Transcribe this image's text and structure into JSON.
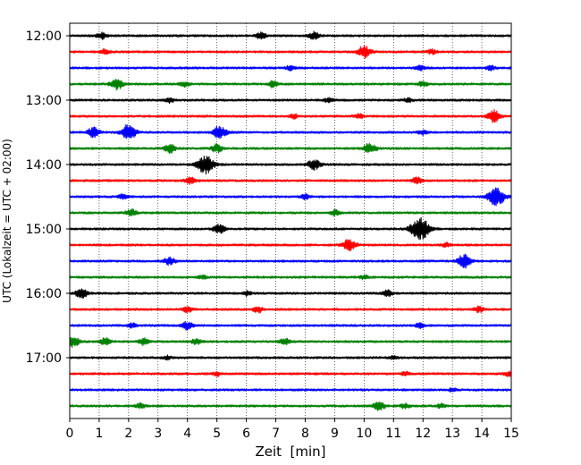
{
  "chart_data": {
    "type": "line",
    "title": "",
    "xlabel": "Zeit  [min]",
    "ylabel": "UTC (Lokalzeit = UTC + 02:00)",
    "xlim": [
      0,
      15
    ],
    "x_ticks": [
      0,
      1,
      2,
      3,
      4,
      5,
      6,
      7,
      8,
      9,
      10,
      11,
      12,
      13,
      14,
      15
    ],
    "y_ticks": [
      "12:00",
      "13:00",
      "14:00",
      "15:00",
      "16:00",
      "17:00"
    ],
    "grid": "vertical dotted lines at every minute",
    "traces_per_hour": 4,
    "trace_interval_min": 15,
    "color_cycle": [
      "#000000",
      "#ff0000",
      "#0000ff",
      "#008000"
    ],
    "series": [
      {
        "start": "12:00",
        "events": [
          [
            1.1,
            0.8
          ],
          [
            6.5,
            0.8
          ],
          [
            8.3,
            0.9
          ]
        ]
      },
      {
        "start": "12:15",
        "events": [
          [
            1.2,
            0.6
          ],
          [
            10.0,
            1.6
          ],
          [
            12.3,
            0.6
          ]
        ]
      },
      {
        "start": "12:30",
        "events": [
          [
            7.5,
            0.6
          ],
          [
            11.9,
            0.6
          ],
          [
            14.3,
            0.6
          ]
        ]
      },
      {
        "start": "12:45",
        "events": [
          [
            1.6,
            1.4
          ],
          [
            3.9,
            0.7
          ],
          [
            6.9,
            0.8
          ],
          [
            12.0,
            0.7
          ]
        ]
      },
      {
        "start": "13:00",
        "events": [
          [
            3.4,
            0.6
          ],
          [
            8.8,
            0.6
          ],
          [
            11.5,
            0.5
          ]
        ]
      },
      {
        "start": "13:15",
        "events": [
          [
            7.6,
            0.6
          ],
          [
            9.8,
            0.6
          ],
          [
            14.4,
            1.5
          ]
        ]
      },
      {
        "start": "13:30",
        "events": [
          [
            0.8,
            1.3
          ],
          [
            2.0,
            2.0
          ],
          [
            5.1,
            1.6
          ],
          [
            12.0,
            0.6
          ]
        ]
      },
      {
        "start": "13:45",
        "events": [
          [
            3.4,
            1.1
          ],
          [
            5.0,
            1.0
          ],
          [
            10.2,
            1.4
          ]
        ]
      },
      {
        "start": "14:00",
        "events": [
          [
            4.6,
            2.4
          ],
          [
            8.3,
            1.4
          ]
        ]
      },
      {
        "start": "14:15",
        "events": [
          [
            4.1,
            0.9
          ],
          [
            11.8,
            0.8
          ]
        ]
      },
      {
        "start": "14:30",
        "events": [
          [
            1.8,
            0.6
          ],
          [
            8.0,
            0.6
          ],
          [
            14.5,
            2.4
          ]
        ]
      },
      {
        "start": "14:45",
        "events": [
          [
            2.1,
            0.9
          ],
          [
            9.0,
            0.7
          ]
        ]
      },
      {
        "start": "15:00",
        "events": [
          [
            5.1,
            1.3
          ],
          [
            11.9,
            2.9
          ]
        ]
      },
      {
        "start": "15:15",
        "events": [
          [
            9.5,
            1.5
          ],
          [
            12.8,
            0.5
          ]
        ]
      },
      {
        "start": "15:30",
        "events": [
          [
            3.4,
            1.0
          ],
          [
            13.4,
            1.7
          ]
        ]
      },
      {
        "start": "15:45",
        "events": [
          [
            4.5,
            0.5
          ],
          [
            10.0,
            0.5
          ]
        ]
      },
      {
        "start": "16:00",
        "events": [
          [
            0.4,
            1.2
          ],
          [
            6.0,
            0.6
          ],
          [
            10.8,
            0.7
          ]
        ]
      },
      {
        "start": "16:15",
        "events": [
          [
            4.0,
            0.8
          ],
          [
            6.4,
            0.8
          ],
          [
            13.9,
            0.7
          ]
        ]
      },
      {
        "start": "16:30",
        "events": [
          [
            2.1,
            0.6
          ],
          [
            4.0,
            1.0
          ],
          [
            11.9,
            0.6
          ]
        ]
      },
      {
        "start": "16:45",
        "events": [
          [
            0.1,
            1.4
          ],
          [
            1.2,
            0.9
          ],
          [
            2.5,
            0.9
          ],
          [
            4.3,
            0.7
          ],
          [
            7.3,
            0.8
          ]
        ]
      },
      {
        "start": "17:00",
        "events": [
          [
            3.3,
            0.5
          ],
          [
            11.0,
            0.5
          ]
        ]
      },
      {
        "start": "17:15",
        "events": [
          [
            5.0,
            0.5
          ],
          [
            11.4,
            0.5
          ],
          [
            14.9,
            0.6
          ]
        ]
      },
      {
        "start": "17:30",
        "events": [
          [
            13.0,
            0.4
          ]
        ]
      },
      {
        "start": "17:45",
        "events": [
          [
            2.4,
            0.6
          ],
          [
            10.5,
            1.2
          ],
          [
            11.4,
            0.6
          ],
          [
            12.6,
            0.5
          ]
        ]
      }
    ]
  }
}
